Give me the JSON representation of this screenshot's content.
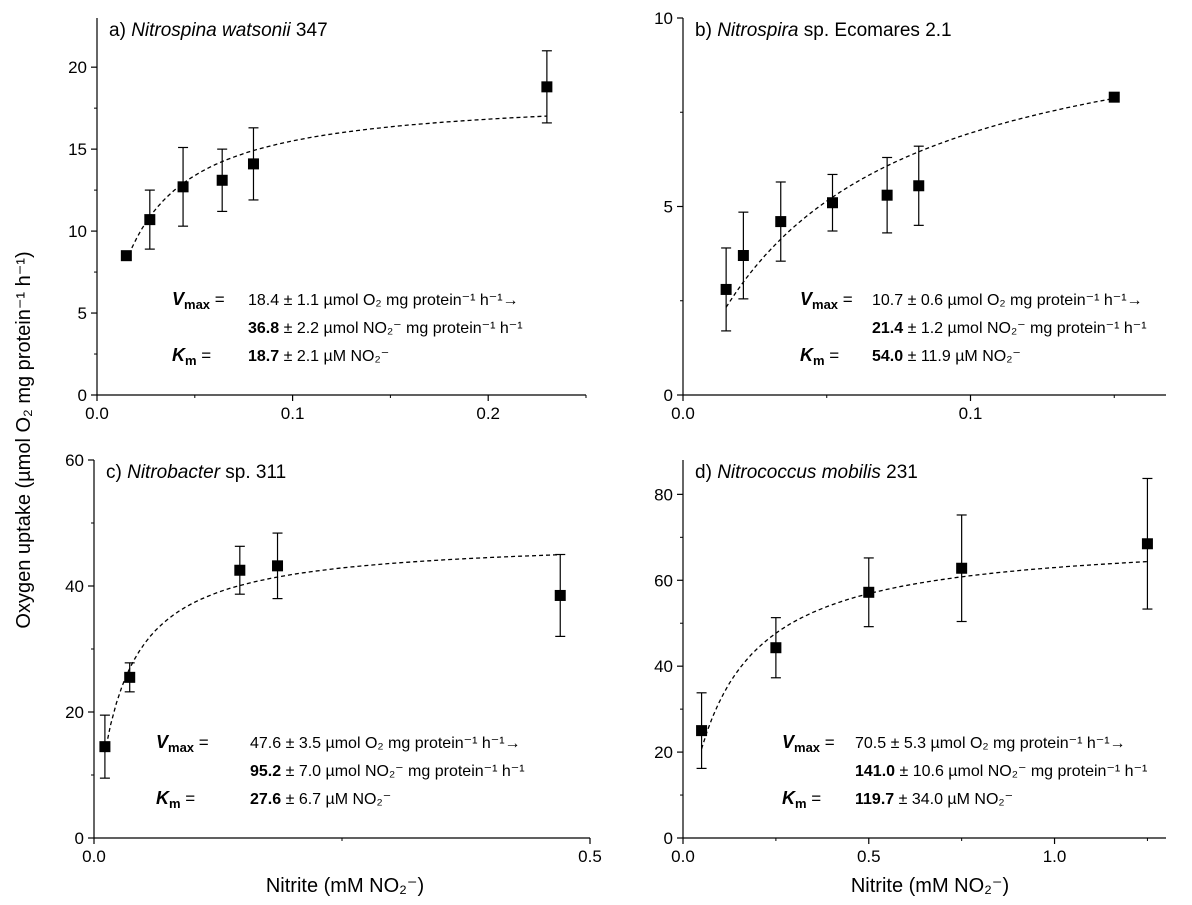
{
  "figure": {
    "ylabel": "Oxygen uptake (µmol O₂ mg protein⁻¹ h⁻¹)",
    "xlabel": "Nitrite (mM NO₂⁻)"
  },
  "chart_data": [
    {
      "type": "scatter",
      "panel": "a)",
      "title_species": "Nitrospina watsonii",
      "title_strain": "347",
      "xlim": [
        0,
        0.25
      ],
      "ylim": [
        0,
        23
      ],
      "xticks": [
        "0.0",
        "0.1",
        "0.2"
      ],
      "xtick_values": [
        0,
        0.1,
        0.2
      ],
      "yticks": [
        "0",
        "5",
        "10",
        "15",
        "20"
      ],
      "ytick_values": [
        0,
        5,
        10,
        15,
        20
      ],
      "series": [
        {
          "x": [
            0.015,
            0.027,
            0.044,
            0.064,
            0.08,
            0.23
          ],
          "y": [
            8.5,
            10.7,
            12.7,
            13.1,
            14.1,
            18.8
          ],
          "err": [
            0,
            1.8,
            2.4,
            1.9,
            2.2,
            2.2
          ]
        }
      ],
      "fit": {
        "vmax": 18.4,
        "km": 0.0187,
        "x_range": [
          0.015,
          0.23
        ]
      },
      "kinetics": {
        "vmax_label": "V",
        "vmax_sub": "max",
        "eq": "=",
        "vmax_o2": "18.4 ± 1.1 µmol O₂ mg protein⁻¹ h⁻¹→",
        "vmax_no2_bold": "36.8",
        "vmax_no2_rest": "± 2.2 µmol NO₂⁻ mg protein⁻¹ h⁻¹",
        "km_label": "K",
        "km_sub": "m",
        "km_bold": "18.7",
        "km_rest": "± 2.1 µM NO₂⁻"
      }
    },
    {
      "type": "scatter",
      "panel": "b)",
      "title_species": "Nitrospira",
      "title_strain": "sp. Ecomares 2.1",
      "xlim": [
        0,
        0.168
      ],
      "ylim": [
        0,
        10
      ],
      "xticks": [
        "0.0",
        "0.1"
      ],
      "xtick_values": [
        0,
        0.1
      ],
      "yticks": [
        "0",
        "5",
        "10"
      ],
      "ytick_values": [
        0,
        5,
        10
      ],
      "series": [
        {
          "x": [
            0.015,
            0.021,
            0.034,
            0.052,
            0.071,
            0.082,
            0.15
          ],
          "y": [
            2.8,
            3.7,
            4.6,
            5.1,
            5.3,
            5.55,
            7.9
          ],
          "err": [
            1.1,
            1.15,
            1.05,
            0.75,
            1.0,
            1.05,
            0
          ]
        }
      ],
      "fit": {
        "vmax": 10.7,
        "km": 0.054,
        "x_range": [
          0.015,
          0.15
        ]
      },
      "kinetics": {
        "vmax_label": "V",
        "vmax_sub": "max",
        "eq": "=",
        "vmax_o2": "10.7 ± 0.6 µmol O₂ mg protein⁻¹ h⁻¹→",
        "vmax_no2_bold": "21.4",
        "vmax_no2_rest": "± 1.2 µmol NO₂⁻ mg protein⁻¹ h⁻¹",
        "km_label": "K",
        "km_sub": "m",
        "km_bold": "54.0",
        "km_rest": "± 11.9 µM NO₂⁻"
      }
    },
    {
      "type": "scatter",
      "panel": "c)",
      "title_species": "Nitrobacter",
      "title_strain": "sp. 311",
      "xlim": [
        0,
        0.5
      ],
      "ylim": [
        0,
        60
      ],
      "xticks": [
        "0.0",
        "0.5"
      ],
      "xtick_values": [
        0,
        0.5
      ],
      "yticks": [
        "0",
        "20",
        "40",
        "60"
      ],
      "ytick_values": [
        0,
        20,
        40,
        60
      ],
      "series": [
        {
          "x": [
            0.011,
            0.036,
            0.147,
            0.185,
            0.47
          ],
          "y": [
            14.5,
            25.5,
            42.5,
            43.2,
            38.5
          ],
          "err": [
            5.0,
            2.3,
            3.8,
            5.2,
            6.5
          ]
        }
      ],
      "fit": {
        "vmax": 47.6,
        "km": 0.0276,
        "x_range": [
          0.011,
          0.47
        ]
      },
      "kinetics": {
        "vmax_label": "V",
        "vmax_sub": "max",
        "eq": "=",
        "vmax_o2": "47.6 ± 3.5 µmol O₂ mg protein⁻¹ h⁻¹→",
        "vmax_no2_bold": "95.2",
        "vmax_no2_rest": "± 7.0 µmol NO₂⁻ mg protein⁻¹ h⁻¹",
        "km_label": "K",
        "km_sub": "m",
        "km_bold": "27.6",
        "km_rest": "± 6.7 µM NO₂⁻"
      }
    },
    {
      "type": "scatter",
      "panel": "d)",
      "title_species": "Nitrococcus mobilis",
      "title_strain": "231",
      "xlim": [
        0,
        1.3
      ],
      "ylim": [
        0,
        88
      ],
      "xticks": [
        "0.0",
        "0.5",
        "1.0"
      ],
      "xtick_values": [
        0,
        0.5,
        1.0
      ],
      "yticks": [
        "0",
        "20",
        "40",
        "60",
        "80"
      ],
      "ytick_values": [
        0,
        20,
        40,
        60,
        80
      ],
      "series": [
        {
          "x": [
            0.05,
            0.25,
            0.5,
            0.75,
            1.25
          ],
          "y": [
            25.0,
            44.3,
            57.2,
            62.8,
            68.5
          ],
          "err": [
            8.8,
            7.0,
            8.0,
            12.4,
            15.2
          ]
        }
      ],
      "fit": {
        "vmax": 70.5,
        "km": 0.1197,
        "x_range": [
          0.05,
          1.25
        ]
      },
      "kinetics": {
        "vmax_label": "V",
        "vmax_sub": "max",
        "eq": "=",
        "vmax_o2": "70.5 ± 5.3 µmol O₂ mg protein⁻¹ h⁻¹→",
        "vmax_no2_bold": "141.0",
        "vmax_no2_rest": "± 10.6 µmol NO₂⁻ mg protein⁻¹ h⁻¹",
        "km_label": "K",
        "km_sub": "m",
        "km_bold": "119.7",
        "km_rest": "± 34.0 µM NO₂⁻"
      }
    }
  ]
}
